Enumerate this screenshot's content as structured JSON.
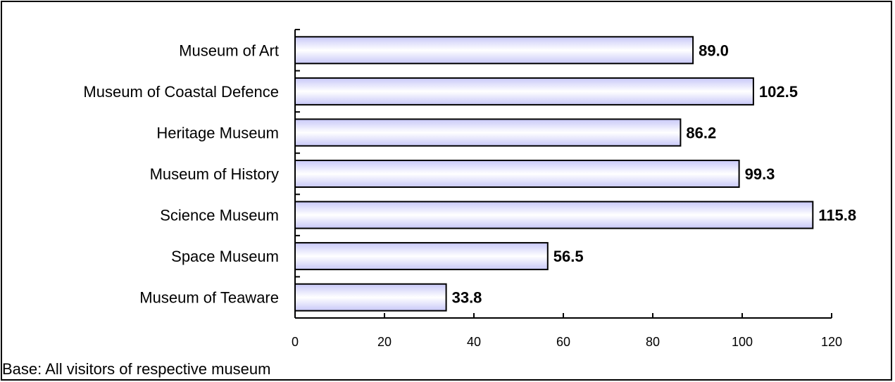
{
  "chart_data": {
    "type": "bar",
    "orientation": "horizontal",
    "categories": [
      "Museum of Art",
      "Museum of Coastal Defence",
      "Heritage Museum",
      "Museum of History",
      "Science Museum",
      "Space Museum",
      "Museum of Teaware"
    ],
    "values": [
      89.0,
      102.5,
      86.2,
      99.3,
      115.8,
      56.5,
      33.8
    ],
    "value_labels": [
      "89.0",
      "102.5",
      "86.2",
      "99.3",
      "115.8",
      "56.5",
      "33.8"
    ],
    "xlim": [
      0,
      120
    ],
    "xticks": [
      0,
      20,
      40,
      60,
      80,
      100,
      120
    ],
    "xtick_labels": [
      "0",
      "20",
      "40",
      "60",
      "80",
      "100",
      "120"
    ],
    "grid": false,
    "legend": "none",
    "colors": {
      "bar_fill": "#c8c8f8",
      "bar_fill_light": "#ffffff",
      "bar_border": "#000000"
    }
  },
  "footnote": "Base: All visitors of respective museum"
}
